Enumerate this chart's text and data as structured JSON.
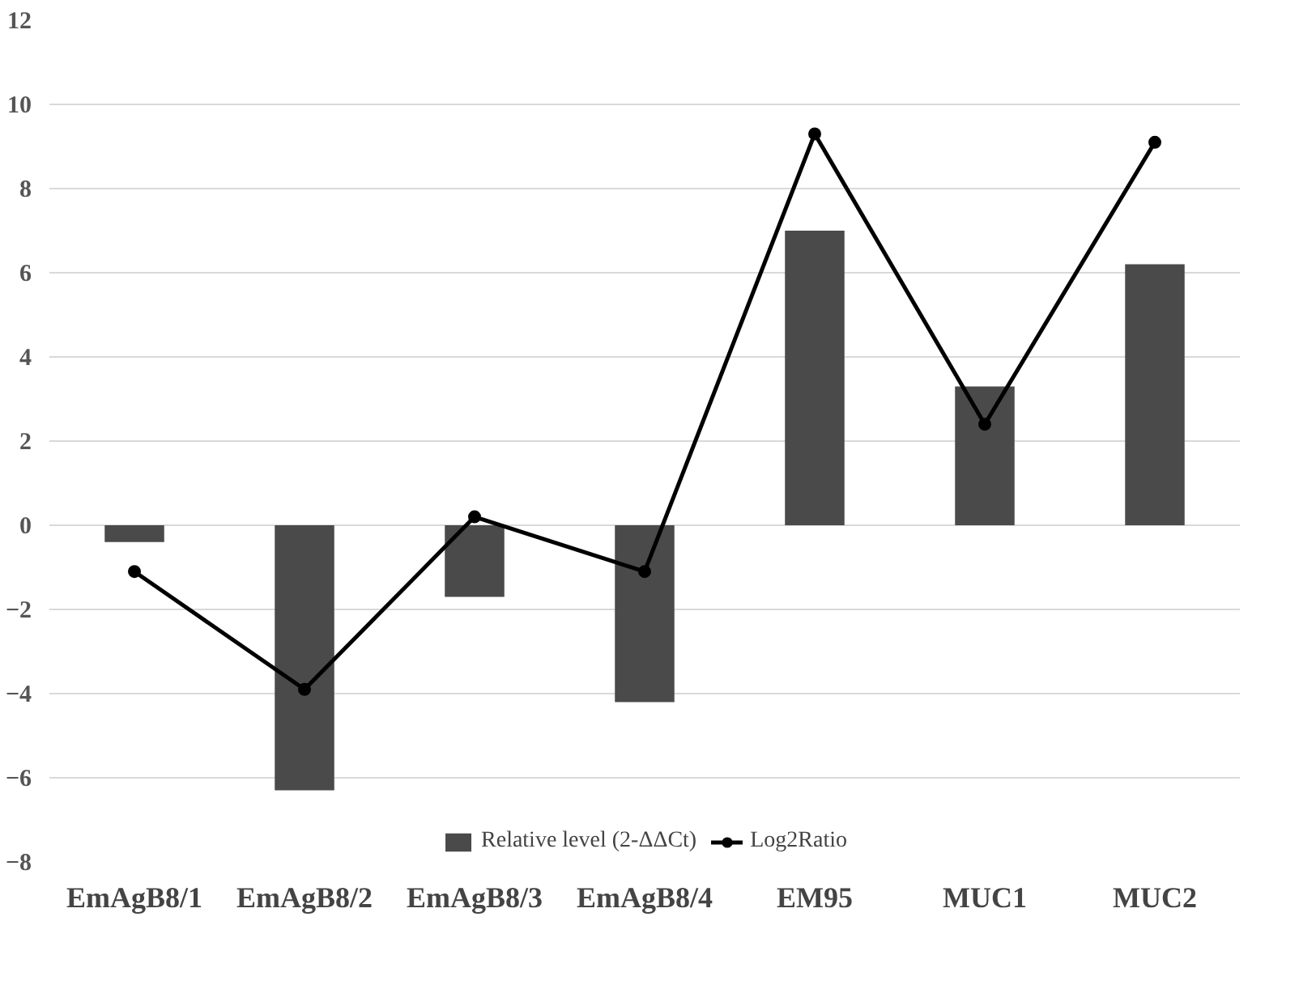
{
  "chart_data": {
    "type": "bar",
    "categories": [
      "EmAgB8/1",
      "EmAgB8/2",
      "EmAgB8/3",
      "EmAgB8/4",
      "EM95",
      "MUC1",
      "MUC2"
    ],
    "series": [
      {
        "name": "Relative level (2-ΔΔCt)",
        "color": "#4a4a4a",
        "values": [
          -0.4,
          -6.3,
          -1.7,
          -4.2,
          7.0,
          3.3,
          6.2
        ]
      },
      {
        "name": "Log2Ratio",
        "type": "line",
        "color": "#000000",
        "marker": "circle",
        "values": [
          -1.1,
          -3.9,
          0.2,
          -1.1,
          9.3,
          2.4,
          9.1
        ]
      }
    ],
    "ylim": [
      -8,
      12
    ],
    "yticks": [
      -8,
      -6,
      -4,
      -2,
      0,
      2,
      4,
      6,
      8,
      10,
      12
    ],
    "grid": "y",
    "legend": "bottom"
  }
}
